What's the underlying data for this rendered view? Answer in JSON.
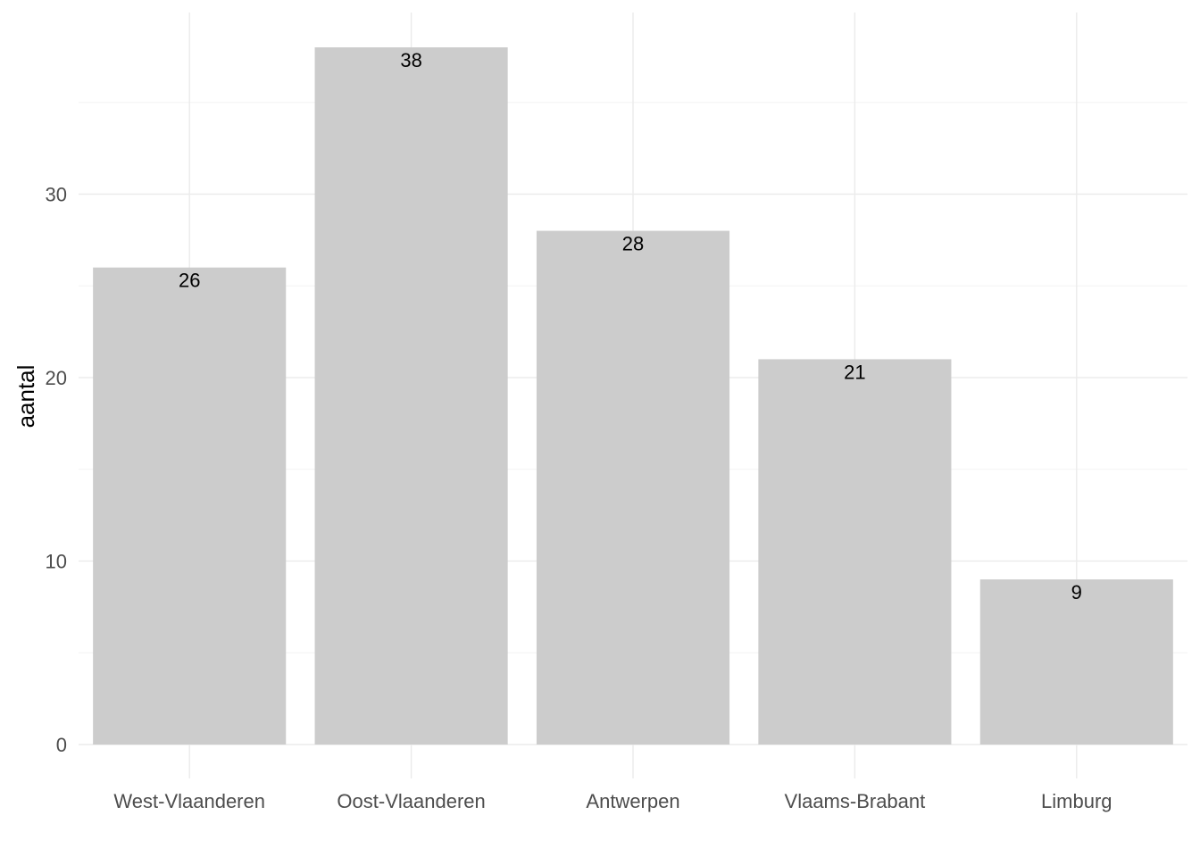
{
  "chart_data": {
    "type": "bar",
    "categories": [
      "West-Vlaanderen",
      "Oost-Vlaanderen",
      "Antwerpen",
      "Vlaams-Brabant",
      "Limburg"
    ],
    "values": [
      26,
      38,
      28,
      21,
      9
    ],
    "data_labels": [
      "26",
      "38",
      "28",
      "21",
      "9"
    ],
    "xlabel": "",
    "ylabel": "aantal",
    "ylim": [
      0,
      39.9
    ],
    "yticks": [
      0,
      10,
      20,
      30
    ],
    "yticks_minor": [
      5,
      15,
      25,
      35
    ],
    "ytick_labels": [
      "0",
      "10",
      "20",
      "30"
    ],
    "grid": true,
    "legend": "none",
    "bar_color": "#cccccc",
    "grid_color": "#ebebeb"
  }
}
